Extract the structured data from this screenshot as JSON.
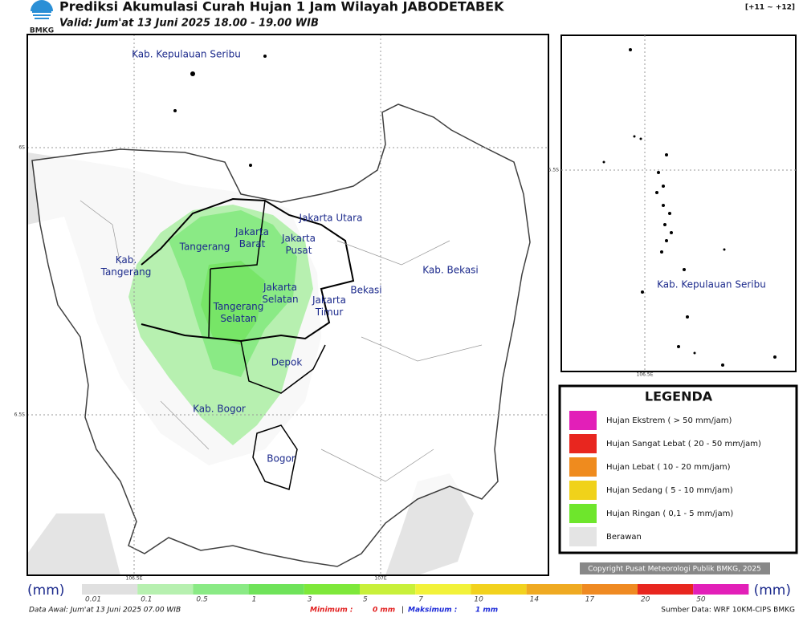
{
  "header": {
    "logo": "BMKG",
    "title": "Prediksi Akumulasi Curah Hujan 1 Jam Wilayah JABODETABEK",
    "valid": "Valid: Jum'at 13 Juni 2025 18.00 - 19.00 WIB",
    "step": "[+11 ~ +12]"
  },
  "main_map": {
    "regions": [
      {
        "lines": [
          "Kab. Kepulauan Seribu"
        ]
      },
      {
        "lines": [
          "Jakarta Utara"
        ]
      },
      {
        "lines": [
          "Jakarta",
          "Barat"
        ]
      },
      {
        "lines": [
          "Jakarta",
          "Pusat"
        ]
      },
      {
        "lines": [
          "Tangerang"
        ]
      },
      {
        "lines": [
          "Kab.",
          "Tangerang"
        ]
      },
      {
        "lines": [
          "Jakarta",
          "Selatan"
        ]
      },
      {
        "lines": [
          "Tangerang",
          "Selatan"
        ]
      },
      {
        "lines": [
          "Jakarta",
          "Timur"
        ]
      },
      {
        "lines": [
          "Bekasi"
        ]
      },
      {
        "lines": [
          "Kab. Bekasi"
        ]
      },
      {
        "lines": [
          "Depok"
        ]
      },
      {
        "lines": [
          "Kab. Bogor"
        ]
      },
      {
        "lines": [
          "Bogor"
        ]
      }
    ],
    "lat_labels": [
      "6S",
      "6.5S"
    ],
    "lon_labels": [
      "106.5E",
      "107E"
    ]
  },
  "inset_map": {
    "region": "Kab. Kepulauan Seribu",
    "lat_label": "5.5S",
    "lon_label": "106.5E"
  },
  "legend": {
    "title": "LEGENDA",
    "items": [
      {
        "label": "Hujan Ekstrem ( > 50 mm/jam)",
        "color": "#e21fb8"
      },
      {
        "label": "Hujan Sangat Lebat ( 20 - 50 mm/jam)",
        "color": "#e8261f"
      },
      {
        "label": "Hujan Lebat ( 10 - 20 mm/jam)",
        "color": "#ef8b1e"
      },
      {
        "label": "Hujan Sedang ( 5 - 10 mm/jam)",
        "color": "#f0d21a"
      },
      {
        "label": "Hujan Ringan ( 0,1 - 5 mm/jam)",
        "color": "#6ee62c"
      },
      {
        "label": "Berawan",
        "color": "#e4e4e4"
      }
    ]
  },
  "copyright": "Copyright Pusat Meteorologi Publik BMKG, 2025",
  "colorbar": {
    "unit": "(mm)",
    "labels": [
      "0.01",
      "0.1",
      "0.5",
      "1",
      "3",
      "5",
      "7",
      "10",
      "14",
      "17",
      "20",
      "50"
    ],
    "colors": [
      "#e0e0e0",
      "#b7f0b0",
      "#8aea85",
      "#6fe35a",
      "#7ee83a",
      "#c8f03a",
      "#f2f23a",
      "#f2d21e",
      "#efaa22",
      "#ef8a22",
      "#e8261f",
      "#e21fb8"
    ]
  },
  "footer": {
    "data_awal": "Data Awal: Jum'at 13 Juni 2025 07.00 WIB",
    "min_label": "Minimum :",
    "min_value": "0 mm",
    "separator": "|",
    "max_label": "Maksimum :",
    "max_value": "1 mm",
    "source": "Sumber Data: WRF 10KM-CIPS BMKG"
  }
}
